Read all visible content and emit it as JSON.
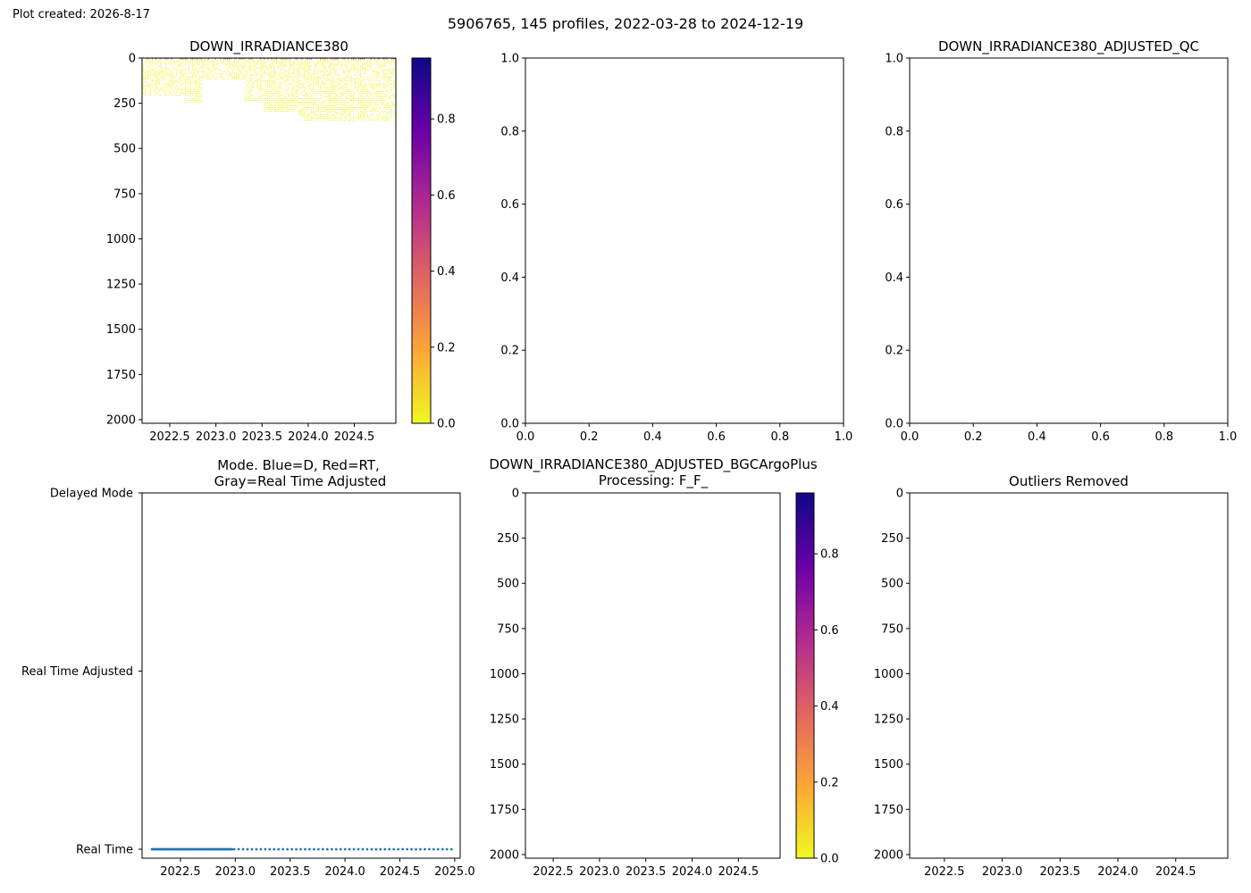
{
  "header": {
    "plot_created": "Plot created: 2026-8-17",
    "suptitle": "5906765, 145 profiles, 2022-03-28 to 2024-12-19"
  },
  "colors": {
    "colormap": "plasma_r",
    "cmap_stops": [
      "#f0f921",
      "#fca636",
      "#e16462",
      "#b12a90",
      "#6a00a8",
      "#0d0887"
    ],
    "mode_points": "#1f77b4"
  },
  "chart_data": [
    {
      "id": "down_irradiance",
      "type": "heatmap",
      "title": "DOWN_IRRADIANCE380",
      "xlim": [
        2022.2,
        2024.95
      ],
      "ylim": [
        2020,
        0
      ],
      "x_ticks": [
        2022.5,
        2023.0,
        2023.5,
        2024.0,
        2024.5
      ],
      "x_tick_labels": [
        "2022.5",
        "2023.0",
        "2023.5",
        "2024.0",
        "2024.5"
      ],
      "y_ticks": [
        0,
        250,
        500,
        750,
        1000,
        1250,
        1500,
        1750,
        2000
      ],
      "y_tick_labels": [
        "0",
        "250",
        "500",
        "750",
        "1000",
        "1250",
        "1500",
        "1750",
        "2000"
      ],
      "colorbar": {
        "range": [
          0,
          0.96
        ],
        "ticks": [
          0.0,
          0.2,
          0.4,
          0.6,
          0.8
        ],
        "tick_labels": [
          "0.0",
          "0.2",
          "0.4",
          "0.6",
          "0.8"
        ]
      },
      "profile_depth_segments": [
        {
          "x_start": 2022.2,
          "x_end": 2022.65,
          "max_depth": 210
        },
        {
          "x_start": 2022.65,
          "x_end": 2022.85,
          "max_depth": 245
        },
        {
          "x_start": 2022.85,
          "x_end": 2023.3,
          "max_depth": 115
        },
        {
          "x_start": 2023.3,
          "x_end": 2023.5,
          "max_depth": 240
        },
        {
          "x_start": 2023.5,
          "x_end": 2023.88,
          "max_depth": 295
        },
        {
          "x_start": 2023.88,
          "x_end": 2024.95,
          "max_depth": 345
        }
      ],
      "profile_count": 145,
      "value_note_range": [
        0,
        0.96
      ]
    },
    {
      "id": "empty_top_middle",
      "type": "scatter",
      "xlim": [
        0,
        1
      ],
      "ylim": [
        0,
        1
      ],
      "x_ticks": [
        0.0,
        0.2,
        0.4,
        0.6,
        0.8,
        1.0
      ],
      "x_tick_labels": [
        "0.0",
        "0.2",
        "0.4",
        "0.6",
        "0.8",
        "1.0"
      ],
      "y_ticks": [
        0.0,
        0.2,
        0.4,
        0.6,
        0.8,
        1.0
      ],
      "y_tick_labels": [
        "0.0",
        "0.2",
        "0.4",
        "0.6",
        "0.8",
        "1.0"
      ]
    },
    {
      "id": "adjusted_qc",
      "type": "scatter",
      "title": "DOWN_IRRADIANCE380_ADJUSTED_QC",
      "xlim": [
        0,
        1
      ],
      "ylim": [
        0,
        1
      ],
      "x_ticks": [
        0.0,
        0.2,
        0.4,
        0.6,
        0.8,
        1.0
      ],
      "x_tick_labels": [
        "0.0",
        "0.2",
        "0.4",
        "0.6",
        "0.8",
        "1.0"
      ],
      "y_ticks": [
        0.0,
        0.2,
        0.4,
        0.6,
        0.8,
        1.0
      ],
      "y_tick_labels": [
        "0.0",
        "0.2",
        "0.4",
        "0.6",
        "0.8",
        "1.0"
      ]
    },
    {
      "id": "mode",
      "type": "scatter",
      "title_line1": "Mode. Blue=D, Red=RT,",
      "title_line2": "Gray=Real Time Adjusted",
      "xlim": [
        2022.15,
        2025.05
      ],
      "y_categories": [
        "Real Time",
        "Real Time Adjusted",
        "Delayed Mode"
      ],
      "x_ticks": [
        2022.5,
        2023.0,
        2023.5,
        2024.0,
        2024.5,
        2025.0
      ],
      "x_tick_labels": [
        "2022.5",
        "2023.0",
        "2023.5",
        "2024.0",
        "2024.5",
        "2025.0"
      ],
      "series": [
        {
          "x_start": 2022.24,
          "x_end": 2022.97,
          "count": 95,
          "category": "Real Time"
        },
        {
          "x_start": 2022.99,
          "x_end": 2024.97,
          "count": 50,
          "category": "Real Time"
        }
      ]
    },
    {
      "id": "bgcargoplus",
      "type": "heatmap",
      "title_line1": "DOWN_IRRADIANCE380_ADJUSTED_BGCArgoPlus",
      "title_line2": "Processing: F_F_",
      "xlim": [
        2022.2,
        2024.95
      ],
      "ylim": [
        2020,
        0
      ],
      "x_ticks": [
        2022.5,
        2023.0,
        2023.5,
        2024.0,
        2024.5
      ],
      "x_tick_labels": [
        "2022.5",
        "2023.0",
        "2023.5",
        "2024.0",
        "2024.5"
      ],
      "y_ticks": [
        0,
        250,
        500,
        750,
        1000,
        1250,
        1500,
        1750,
        2000
      ],
      "y_tick_labels": [
        "0",
        "250",
        "500",
        "750",
        "1000",
        "1250",
        "1500",
        "1750",
        "2000"
      ],
      "colorbar": {
        "range": [
          0,
          0.96
        ],
        "ticks": [
          0.0,
          0.2,
          0.4,
          0.6,
          0.8
        ],
        "tick_labels": [
          "0.0",
          "0.2",
          "0.4",
          "0.6",
          "0.8"
        ]
      }
    },
    {
      "id": "outliers",
      "type": "heatmap",
      "title": "Outliers Removed",
      "xlim": [
        2022.2,
        2024.95
      ],
      "ylim": [
        2020,
        0
      ],
      "x_ticks": [
        2022.5,
        2023.0,
        2023.5,
        2024.0,
        2024.5
      ],
      "x_tick_labels": [
        "2022.5",
        "2023.0",
        "2023.5",
        "2024.0",
        "2024.5"
      ],
      "y_ticks": [
        0,
        250,
        500,
        750,
        1000,
        1250,
        1500,
        1750,
        2000
      ],
      "y_tick_labels": [
        "0",
        "250",
        "500",
        "750",
        "1000",
        "1250",
        "1500",
        "1750",
        "2000"
      ]
    }
  ]
}
